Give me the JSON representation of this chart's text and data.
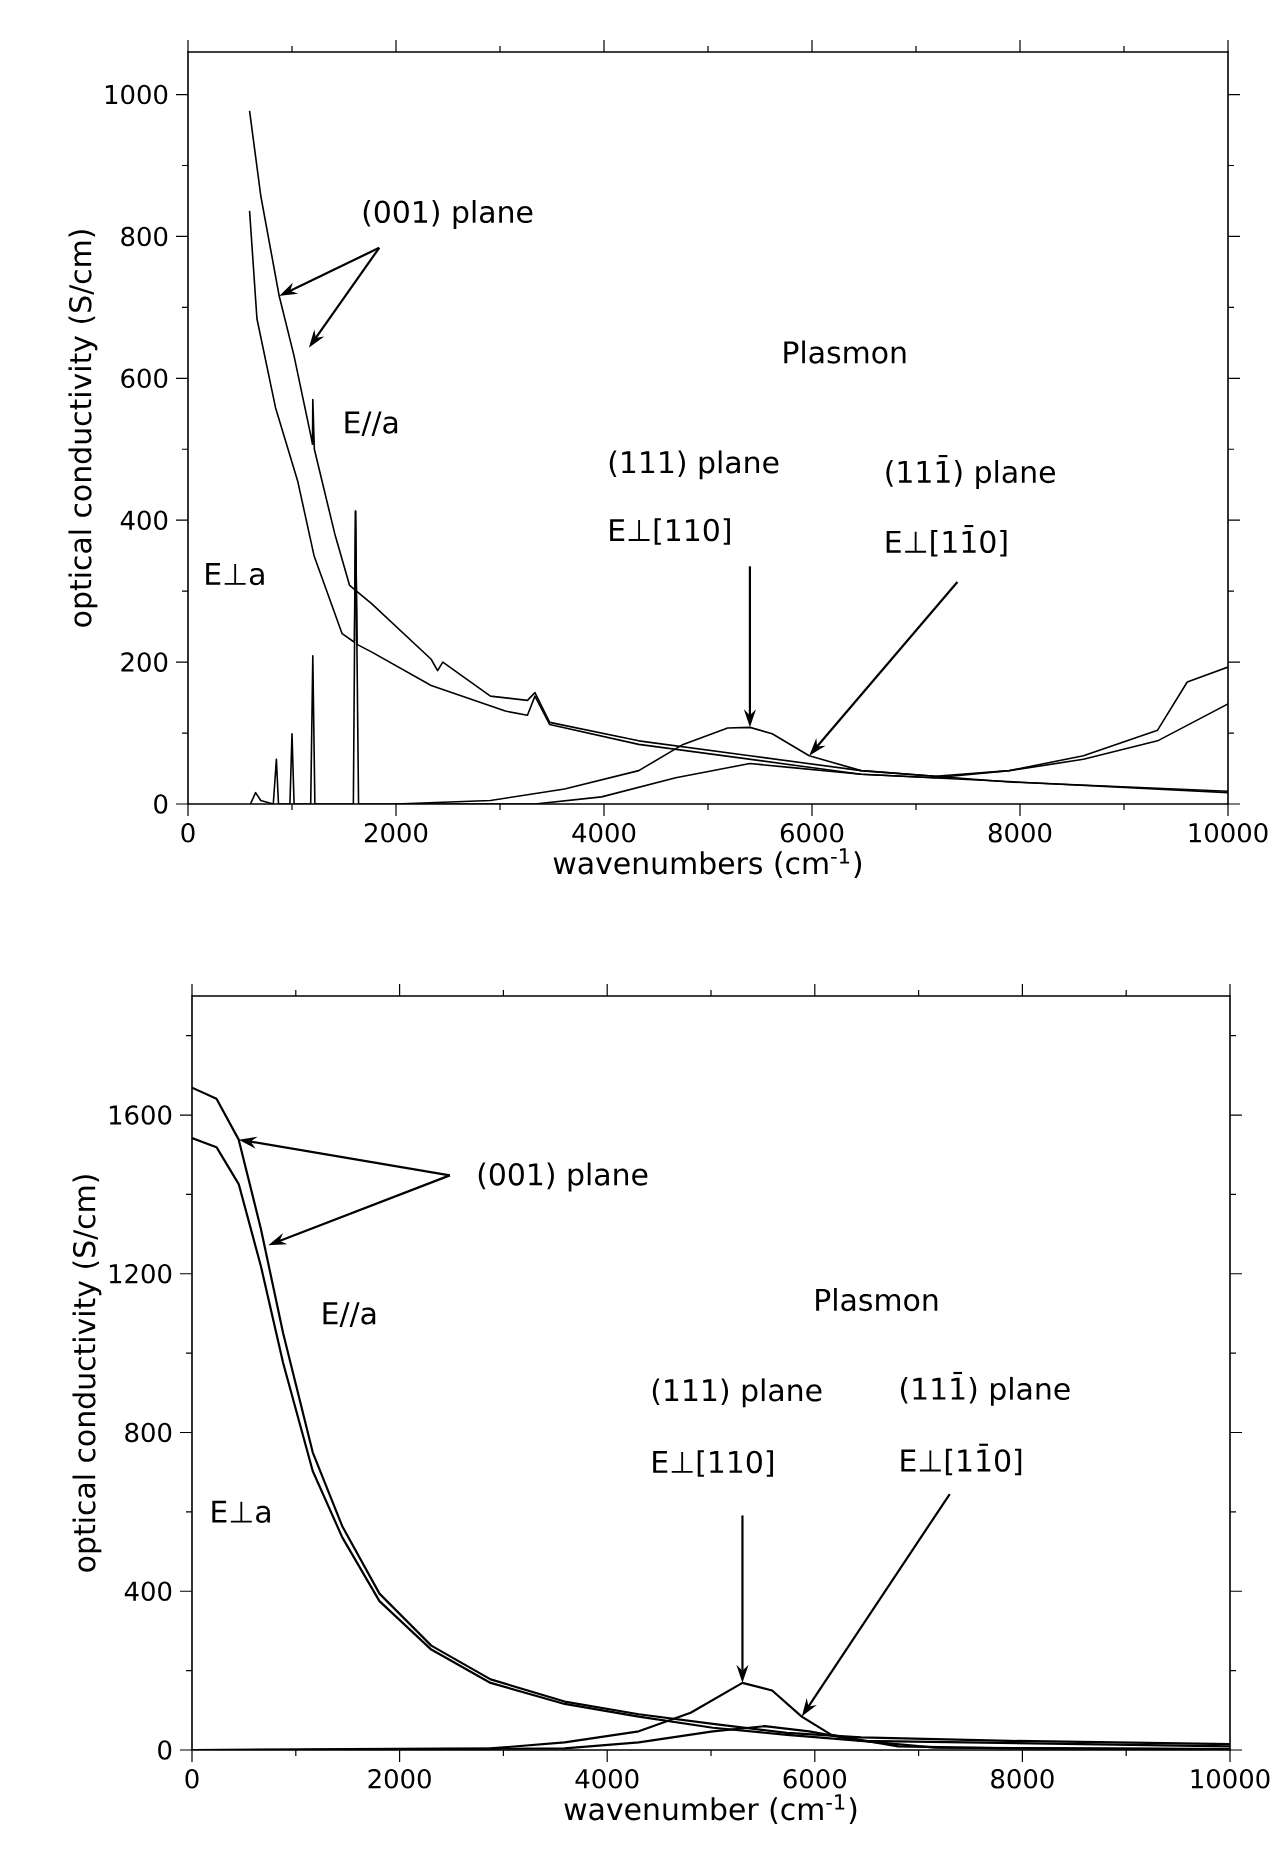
{
  "chart_data": [
    {
      "type": "line",
      "xlabel": "wavenumbers (cm$^{-1}$)",
      "ylabel": "optical conductivity (S/cm)",
      "xlim": [
        0,
        10000
      ],
      "ylim": [
        0,
        1060
      ],
      "xticks": [
        0,
        {
          "value": 1000,
          "label": null
        },
        2000,
        {
          "value": 3000,
          "label": null
        },
        4000,
        {
          "value": 5000,
          "label": null
        },
        6000,
        {
          "value": 7000,
          "label": null
        },
        8000,
        {
          "value": 9000,
          "label": null
        },
        10000
      ],
      "yticks": [
        0,
        {
          "value": 100,
          "label": null
        },
        200,
        {
          "value": 300,
          "label": null
        },
        400,
        {
          "value": 500,
          "label": null
        },
        600,
        {
          "value": 700,
          "label": null
        },
        800,
        {
          "value": 900,
          "label": null
        },
        1000
      ],
      "series": [
        {
          "color": "#000000",
          "x": [
            592,
            700,
            877,
            1019,
            1180,
            1197,
            1200,
            1215,
            1411,
            1554,
            1768,
            2338,
            2400,
            2450,
            2908,
            3264,
            3336,
            3478,
            4334,
            5403,
            6472,
            7897,
            10000
          ],
          "values": [
            977,
            857,
            716,
            632,
            520,
            507,
            570,
            500,
            381,
            308,
            282,
            204,
            188,
            200,
            152,
            146,
            157,
            115,
            89,
            68,
            47,
            31,
            18
          ]
        },
        {
          "color": "#000000",
          "x": [
            592,
            663,
            841,
            1055,
            1212,
            1482,
            1600,
            1611,
            1625,
            1768,
            2338,
            3051,
            3264,
            3336,
            3478,
            4334,
            6472,
            10000
          ],
          "values": [
            836,
            684,
            559,
            455,
            350,
            240,
            228,
            413,
            225,
            214,
            167,
            131,
            125,
            152,
            112,
            84,
            42,
            16
          ]
        },
        {
          "color": "#000000",
          "x": [
            1996,
            2908,
            3621,
            4334,
            4761,
            5189,
            5403,
            5617,
            5973,
            6472,
            7185,
            7897,
            8610,
            9323,
            9608,
            10000
          ],
          "values": [
            0,
            5,
            21,
            47,
            84,
            107,
            108,
            99,
            68,
            47,
            39,
            47,
            68,
            104,
            172,
            193
          ]
        },
        {
          "color": "#000000",
          "x": [
            600,
            650,
            700,
            820,
            850,
            870,
            980,
            1000,
            1020,
            1180,
            1200,
            1220,
            1590,
            1611,
            1640,
            3336,
            3977,
            4690,
            5403,
            5759,
            6472,
            7185,
            7897,
            8610,
            9323,
            10000
          ],
          "values": [
            0,
            16,
            5,
            0,
            63,
            0,
            0,
            99,
            0,
            0,
            209,
            0,
            0,
            413,
            0,
            0,
            10,
            37,
            57,
            52,
            42,
            37,
            47,
            63,
            89,
            141
          ]
        }
      ],
      "annotations": [
        {
          "text": "(001) plane",
          "x": 877,
          "y": 716
        },
        "E//a",
        "E⊥a",
        "Plasmon",
        "(111) plane",
        {
          "text": "E⊥[110]",
          "x": 5403,
          "y": 108
        },
        "(111̄) plane",
        {
          "text": "E⊥[11̄0]",
          "x": 5973,
          "y": 68
        }
      ]
    },
    {
      "type": "line",
      "xlabel": "wavenumber (cm$^{-1}$)",
      "ylabel": "optical conductivity (S/cm)",
      "xlim": [
        0,
        10000
      ],
      "ylim": [
        0,
        1900
      ],
      "xticks": [
        0,
        {
          "value": 1000,
          "label": null
        },
        2000,
        {
          "value": 3000,
          "label": null
        },
        4000,
        {
          "value": 5000,
          "label": null
        },
        6000,
        {
          "value": 7000,
          "label": null
        },
        8000,
        {
          "value": 9000,
          "label": null
        },
        10000
      ],
      "yticks": [
        0,
        {
          "value": 200,
          "label": null
        },
        400,
        {
          "value": 600,
          "label": null
        },
        800,
        {
          "value": 1000,
          "label": null
        },
        1200,
        {
          "value": 1400,
          "label": null
        },
        1600,
        {
          "value": 1800,
          "label": null
        }
      ],
      "series": [
        {
          "color": "#000000",
          "x": [
            0,
            236,
            450,
            664,
            878,
            1163,
            1449,
            1806,
            2305,
            2877,
            3590,
            4304,
            5018,
            5732,
            6445,
            7873,
            10000
          ],
          "values": [
            1669,
            1641,
            1538,
            1313,
            1050,
            750,
            563,
            394,
            263,
            178,
            122,
            90,
            66,
            43,
            32,
            23,
            15
          ]
        },
        {
          "color": "#000000",
          "x": [
            0,
            236,
            450,
            664,
            878,
            1163,
            1449,
            1806,
            2305,
            2877,
            3590,
            4304,
            5018,
            5732,
            6445,
            10000
          ],
          "values": [
            1542,
            1519,
            1426,
            1219,
            975,
            703,
            535,
            375,
            253,
            169,
            116,
            84,
            56,
            38,
            23,
            9
          ]
        },
        {
          "color": "#000000",
          "x": [
            0,
            2877,
            3590,
            4304,
            4804,
            5303,
            5589,
            5874,
            6160,
            6802,
            7873,
            10000
          ],
          "values": [
            0,
            4,
            19,
            47,
            94,
            169,
            150,
            84,
            38,
            9,
            4,
            2
          ]
        },
        {
          "color": "#000000",
          "x": [
            1000,
            3590,
            4304,
            5018,
            5517,
            5946,
            6445,
            7159,
            10000
          ],
          "values": [
            0,
            4,
            19,
            47,
            60,
            47,
            23,
            6,
            2
          ]
        }
      ],
      "annotations": [
        {
          "text": "(001) plane",
          "x": 450,
          "y": 1538
        },
        "E//a",
        "E⊥a",
        "Plasmon",
        "(111) plane",
        {
          "text": "E⊥[110]",
          "x": 5303,
          "y": 169
        },
        "(111̄) plane",
        {
          "text": "E⊥[11̄0]",
          "x": 5874,
          "y": 84
        }
      ]
    }
  ]
}
